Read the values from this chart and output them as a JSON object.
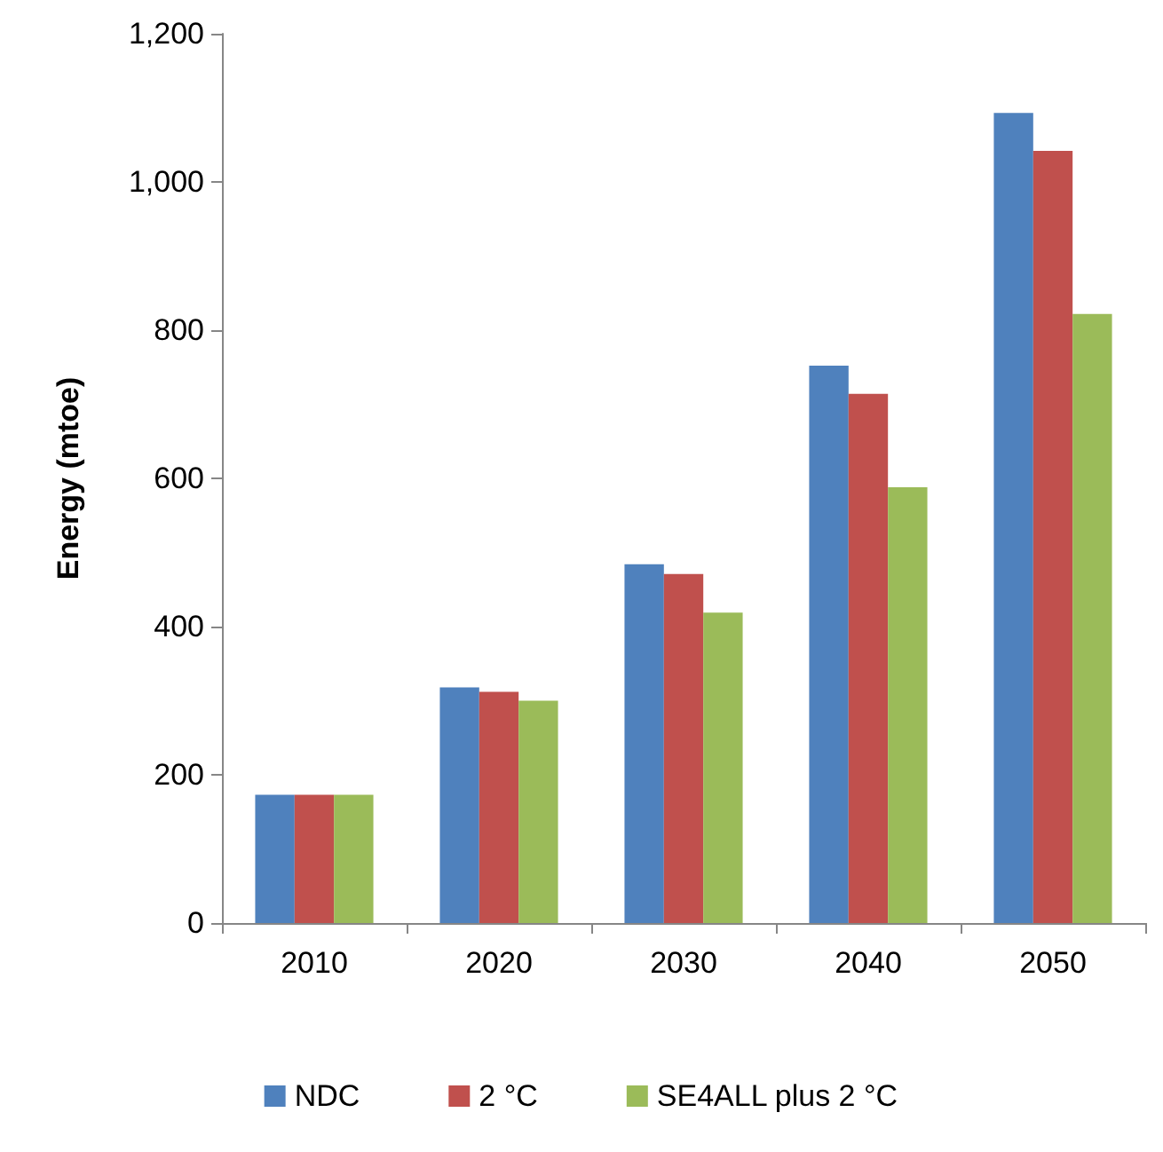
{
  "chart_data": {
    "type": "bar",
    "ylabel": "Energy (mtoe)",
    "categories": [
      "2010",
      "2020",
      "2030",
      "2040",
      "2050"
    ],
    "series": [
      {
        "name": "NDC",
        "color": "#4f81bd",
        "values": [
          173,
          318,
          484,
          752,
          1093
        ]
      },
      {
        "name": "2 °C",
        "color": "#c0504d",
        "values": [
          173,
          312,
          471,
          714,
          1042
        ]
      },
      {
        "name": "SE4ALL plus 2 °C",
        "color": "#9bbb59",
        "values": [
          173,
          300,
          419,
          588,
          822
        ]
      }
    ],
    "ylim": [
      0,
      1200
    ],
    "yticks": [
      0,
      200,
      400,
      600,
      800,
      {
        "value": 1000,
        "label": "1,000"
      },
      {
        "value": 1200,
        "label": "1,200"
      }
    ],
    "grid": false,
    "legend": "bottom"
  }
}
